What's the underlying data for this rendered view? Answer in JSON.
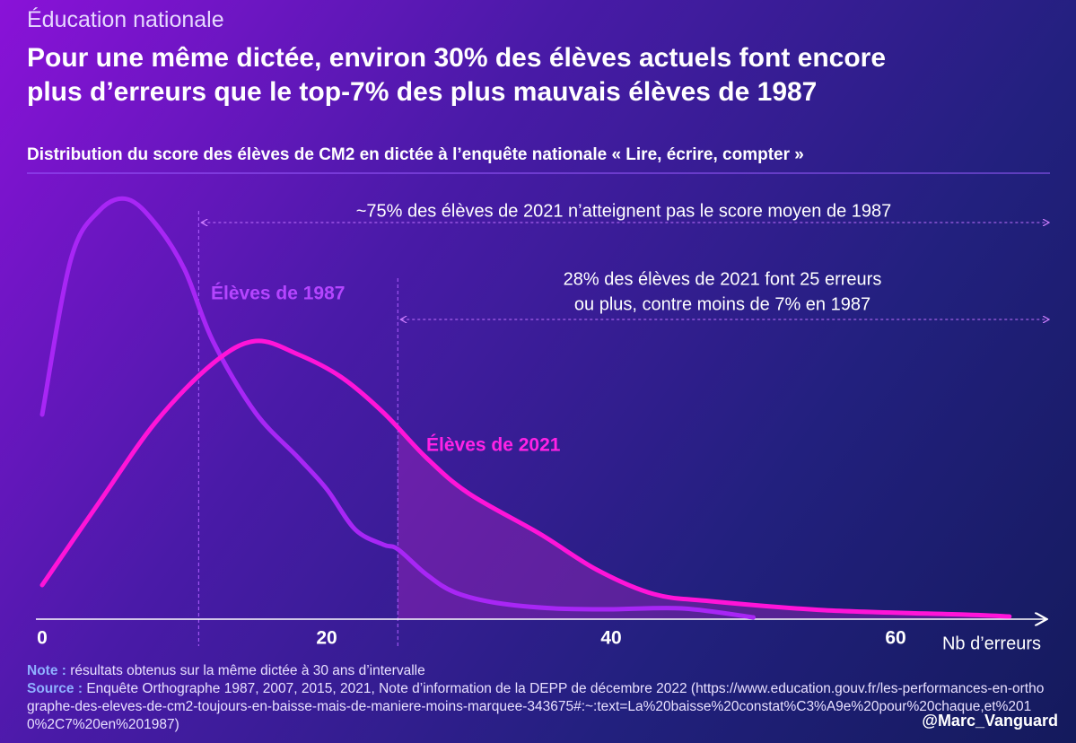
{
  "header": "Éducation nationale",
  "title_lines": [
    "Pour une même dictée, environ 30% des élèves actuels font encore",
    "plus d’erreurs que le top-7% des plus mauvais élèves de 1987"
  ],
  "chart_data": {
    "type": "density",
    "subtitle": "Distribution du score des élèves de CM2 en dictée à l’enquête nationale « Lire, écrire, compter »",
    "x_label": "Nb d’erreurs",
    "xlim": [
      0,
      70
    ],
    "xticks": [
      0,
      20,
      40,
      60
    ],
    "ylim": [
      0,
      5
    ],
    "thresholds": [
      11,
      25
    ],
    "annotations": [
      [
        "~75% des élèves de 2021 n’atteignent pas le score moyen de 1987"
      ],
      [
        "28% des élèves de 2021 font 25 erreurs",
        "ou plus, contre moins de 7% en 1987"
      ]
    ],
    "series": [
      {
        "name": "Élèves de 1987",
        "color": "#a826f5",
        "label_color": "#b545ff",
        "x": [
          0,
          2,
          4,
          6,
          8,
          10,
          12,
          15,
          18,
          20,
          22,
          24,
          25,
          27,
          29,
          32,
          36,
          40,
          45,
          50
        ],
        "values": [
          2.28,
          4.0,
          4.55,
          4.68,
          4.4,
          3.9,
          3.1,
          2.3,
          1.8,
          1.45,
          1.0,
          0.83,
          0.78,
          0.5,
          0.3,
          0.18,
          0.12,
          0.11,
          0.12,
          0.02
        ]
      },
      {
        "name": "Élèves de 2021",
        "color": "#ff14d8",
        "label_color": "#ff22e6",
        "x": [
          0,
          4,
          8,
          12,
          15,
          18,
          21,
          24,
          27,
          30,
          35,
          39,
          43,
          47,
          55,
          65,
          68
        ],
        "values": [
          0.38,
          1.3,
          2.2,
          2.85,
          3.1,
          2.95,
          2.7,
          2.3,
          1.8,
          1.4,
          0.95,
          0.55,
          0.28,
          0.2,
          0.1,
          0.05,
          0.03
        ]
      }
    ]
  },
  "notes": {
    "note_label": "Note :",
    "note": "résultats obtenus sur la même dictée à 30 ans d’intervalle",
    "source_label": "Source :",
    "source": "Enquête Orthographe 1987, 2007, 2015, 2021, Note d’information de la DEPP de décembre 2022 (https://www.education.gouv.fr/les-performances-en-orthographe-des-eleves-de-cm2-toujours-en-baisse-mais-de-maniere-moins-marquee-343675#:~:text=La%20baisse%20constat%C3%A9e%20pour%20chaque,et%2010%2C7%20en%201987)"
  },
  "handle": "@Marc_Vanguard"
}
